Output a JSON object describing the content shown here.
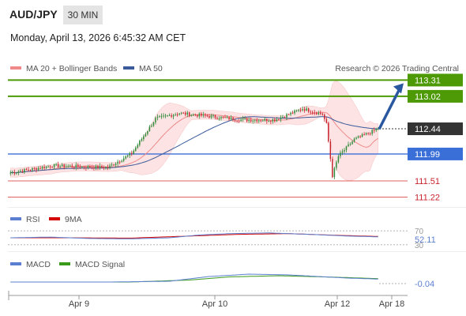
{
  "header": {
    "symbol": "AUD/JPY",
    "timeframe": "30 MIN",
    "datetime": "Monday, April 13, 2026 6:45:32 AM CET"
  },
  "credit": "Research © 2026 Trading Central",
  "colors": {
    "bull": "#2e8b3a",
    "bear": "#c8232c",
    "ma20": "#f08a8a",
    "ma50": "#3a5a9a",
    "bollinger": "#fde0e0",
    "green_level": "#4e9a06",
    "blue_level": "#3b6fd8",
    "red_level": "#e06060",
    "rsi": "#5b7fd0",
    "rsi_ma": "#d40000",
    "macd": "#5b7fd0",
    "macd_signal": "#3a9a1a",
    "arrow": "#2a58a0",
    "last_price_bg": "#333333"
  },
  "chart_data": [
    {
      "type": "candlestick",
      "legend": [
        {
          "label": "MA 20 + Bollinger Bands",
          "color": "#f08a8a"
        },
        {
          "label": "MA 50",
          "color": "#3a5a9a"
        }
      ],
      "ylim": [
        111.1,
        113.4
      ],
      "x_ticks": [
        "Apr 9",
        "Apr 10",
        "Apr 12",
        "Apr 18"
      ],
      "levels": [
        {
          "value": 113.31,
          "label": "113.31",
          "kind": "resistance",
          "color": "#4e9a06"
        },
        {
          "value": 113.02,
          "label": "113.02",
          "kind": "resistance",
          "color": "#4e9a06"
        },
        {
          "value": 112.44,
          "label": "112.44",
          "kind": "last",
          "color": "#333333"
        },
        {
          "value": 111.99,
          "label": "111.99",
          "kind": "pivot",
          "color": "#3b6fd8"
        },
        {
          "value": 111.51,
          "label": "111.51",
          "kind": "support",
          "color": "#e06060"
        },
        {
          "value": 111.22,
          "label": "111.22",
          "kind": "support",
          "color": "#e06060"
        }
      ],
      "segments": [
        {
          "n": 22,
          "from": 111.65,
          "to": 111.78
        },
        {
          "n": 28,
          "from": 111.78,
          "to": 111.75
        },
        {
          "n": 12,
          "from": 111.75,
          "to": 112.0
        },
        {
          "n": 12,
          "from": 112.0,
          "to": 112.62
        },
        {
          "n": 12,
          "from": 112.62,
          "to": 112.72
        },
        {
          "n": 32,
          "from": 112.72,
          "to": 112.6
        },
        {
          "n": 16,
          "from": 112.6,
          "to": 112.6
        },
        {
          "n": 14,
          "from": 112.6,
          "to": 112.8
        },
        {
          "n": 10,
          "from": 112.8,
          "to": 112.7
        },
        {
          "n": 2,
          "from": 112.7,
          "to": 112.52
        },
        {
          "n": 3,
          "from": 112.52,
          "to": 111.6
        },
        {
          "n": 3,
          "from": 111.6,
          "to": 111.95
        },
        {
          "n": 8,
          "from": 111.95,
          "to": 112.25
        },
        {
          "n": 12,
          "from": 112.25,
          "to": 112.44
        }
      ],
      "projection_target": 113.31
    },
    {
      "type": "line",
      "name": "RSI",
      "legend": [
        {
          "label": "RSI",
          "color": "#5b7fd0"
        },
        {
          "label": "9MA",
          "color": "#d40000"
        }
      ],
      "ylim": [
        25,
        75
      ],
      "ref_lines": [
        70,
        30
      ],
      "ref_labels": [
        "70",
        "30"
      ],
      "value_label": "52.11",
      "keypoints_rsi": [
        [
          0,
          50
        ],
        [
          20,
          52
        ],
        [
          40,
          48
        ],
        [
          60,
          47
        ],
        [
          80,
          50
        ],
        [
          95,
          58
        ],
        [
          110,
          62
        ],
        [
          130,
          64
        ],
        [
          150,
          60
        ],
        [
          170,
          55
        ],
        [
          190,
          52
        ],
        [
          210,
          50
        ],
        [
          220,
          46
        ],
        [
          226,
          38
        ],
        [
          232,
          34
        ],
        [
          240,
          42
        ],
        [
          252,
          46
        ],
        [
          262,
          52
        ]
      ],
      "keypoints_ma": [
        [
          0,
          50
        ],
        [
          30,
          50
        ],
        [
          60,
          49
        ],
        [
          90,
          55
        ],
        [
          115,
          60
        ],
        [
          140,
          62
        ],
        [
          165,
          57
        ],
        [
          190,
          53
        ],
        [
          215,
          51
        ],
        [
          225,
          47
        ],
        [
          235,
          44
        ],
        [
          250,
          46
        ],
        [
          262,
          50
        ]
      ]
    },
    {
      "type": "line",
      "name": "MACD",
      "legend": [
        {
          "label": "MACD",
          "color": "#5b7fd0"
        },
        {
          "label": "MACD Signal",
          "color": "#3a9a1a"
        }
      ],
      "ylim": [
        -0.3,
        0.3
      ],
      "value_label": "-0.04",
      "keypoints_macd": [
        [
          0,
          0
        ],
        [
          50,
          0.0
        ],
        [
          80,
          0.02
        ],
        [
          100,
          0.14
        ],
        [
          120,
          0.2
        ],
        [
          140,
          0.18
        ],
        [
          170,
          0.1
        ],
        [
          200,
          0.05
        ],
        [
          215,
          0.03
        ],
        [
          222,
          -0.05
        ],
        [
          230,
          -0.2
        ],
        [
          240,
          -0.12
        ],
        [
          262,
          -0.04
        ]
      ],
      "keypoints_signal": [
        [
          0,
          0
        ],
        [
          60,
          0.0
        ],
        [
          90,
          0.05
        ],
        [
          110,
          0.13
        ],
        [
          135,
          0.16
        ],
        [
          165,
          0.12
        ],
        [
          200,
          0.06
        ],
        [
          220,
          0.04
        ],
        [
          232,
          -0.08
        ],
        [
          245,
          -0.1
        ],
        [
          262,
          -0.06
        ]
      ]
    }
  ]
}
